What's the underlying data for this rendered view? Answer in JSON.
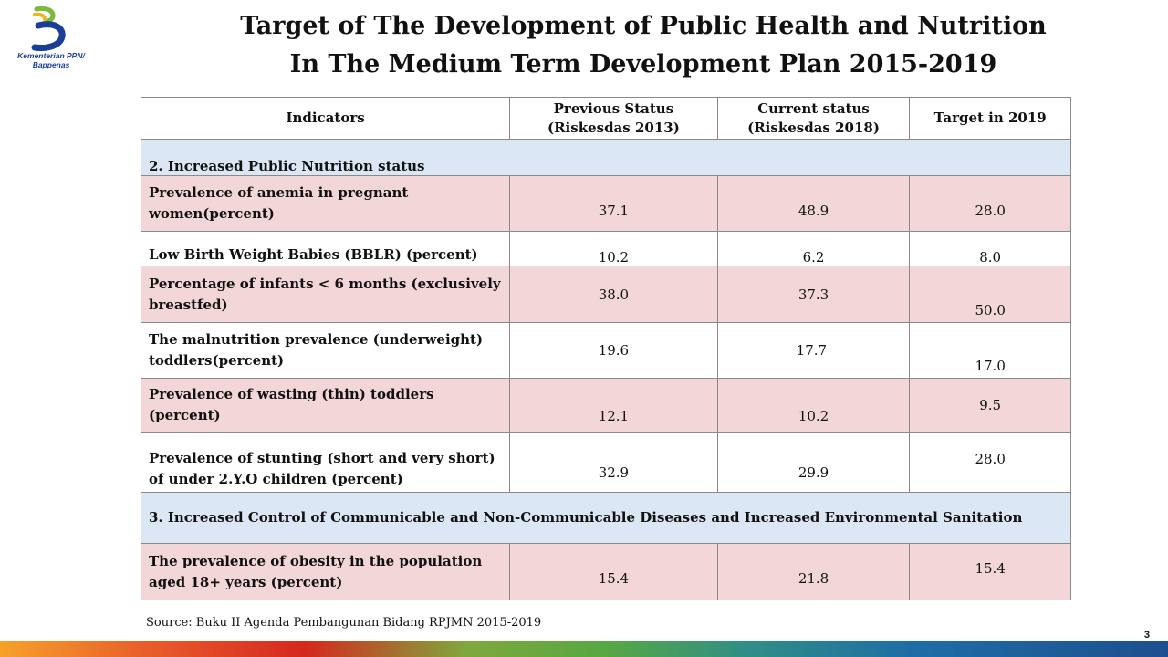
{
  "logo": {
    "text_line1": "Kementerian PPN/",
    "text_line2": "Bappenas"
  },
  "title": {
    "line1": "Target of The Development of Public Health and Nutrition",
    "line2": "In The Medium Term Development Plan 2015-2019"
  },
  "table": {
    "headers": {
      "indicators": "Indicators",
      "previous_line1": "Previous Status",
      "previous_line2": "(Riskesdas 2013)",
      "current_line1": "Current status",
      "current_line2": "(Riskesdas 2018)",
      "target": "Target in 2019"
    },
    "section2": "2. Increased Public Nutrition status",
    "rows": [
      {
        "indicator": "Prevalence of anemia in pregnant women(percent)",
        "previous": "37.1",
        "current": "48.9",
        "target": "28.0"
      },
      {
        "indicator": "Low Birth Weight Babies (BBLR) (percent)",
        "previous": "10.2",
        "current": "6.2",
        "target": "8.0"
      },
      {
        "indicator": "Percentage of infants  < 6 months (exclusively breastfed)",
        "previous": "38.0",
        "current": "37.3",
        "target": "50.0"
      },
      {
        "indicator": "The malnutrition prevalence (underweight) toddlers(percent)",
        "previous": "19.6",
        "current": "17.7",
        "target": "17.0"
      },
      {
        "indicator": "Prevalence of wasting (thin) toddlers (percent)",
        "previous": "12.1",
        "current": "10.2",
        "target": "9.5"
      },
      {
        "indicator": "Prevalence of stunting (short and very short) of under 2.Y.O children (percent)",
        "previous": "32.9",
        "current": "29.9",
        "target": "28.0"
      }
    ],
    "section3": "3. Increased Control of Communicable and Non-Communicable Diseases and Increased Environmental Sanitation",
    "obesity": {
      "indicator": "The prevalence of obesity in the population aged 18+ years (percent)",
      "previous": "15.4",
      "current": "21.8",
      "target": "15.4"
    }
  },
  "source": "Source: Buku II Agenda Pembangunan Bidang RPJMN 2015-2019",
  "page_number": "3",
  "colors": {
    "pink_row": "#f2d6d8",
    "section_row": "#dbe7f4",
    "logo_blue": "#1b3f94",
    "logo_yellow": "#f4b31b",
    "logo_green": "#7cba3e"
  }
}
